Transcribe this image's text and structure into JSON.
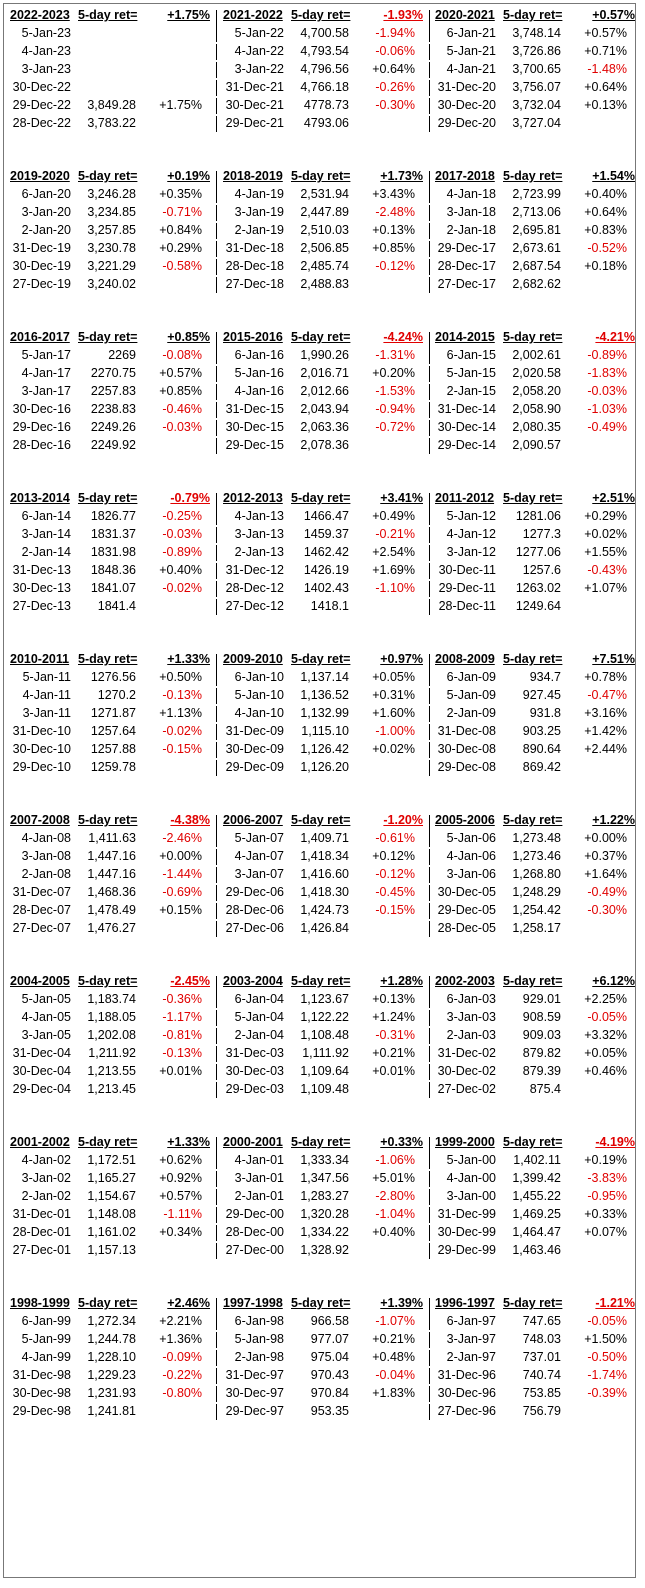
{
  "tables": [
    {
      "period": "2022-2023",
      "label": "5-day ret=",
      "ret": "+1.75%",
      "rows": [
        [
          "5-Jan-23",
          "",
          ""
        ],
        [
          "4-Jan-23",
          "",
          ""
        ],
        [
          "3-Jan-23",
          "",
          ""
        ],
        [
          "30-Dec-22",
          "",
          ""
        ],
        [
          "29-Dec-22",
          "3,849.28",
          "+1.75%"
        ],
        [
          "28-Dec-22",
          "3,783.22",
          ""
        ]
      ]
    },
    {
      "period": "2021-2022",
      "label": "5-day ret=",
      "ret": "-1.93%",
      "rows": [
        [
          "5-Jan-22",
          "4,700.58",
          "-1.94%"
        ],
        [
          "4-Jan-22",
          "4,793.54",
          "-0.06%"
        ],
        [
          "3-Jan-22",
          "4,796.56",
          "+0.64%"
        ],
        [
          "31-Dec-21",
          "4,766.18",
          "-0.26%"
        ],
        [
          "30-Dec-21",
          "4778.73",
          "-0.30%"
        ],
        [
          "29-Dec-21",
          "4793.06",
          ""
        ]
      ]
    },
    {
      "period": "2020-2021",
      "label": "5-day ret=",
      "ret": "+0.57%",
      "rows": [
        [
          "6-Jan-21",
          "3,748.14",
          "+0.57%"
        ],
        [
          "5-Jan-21",
          "3,726.86",
          "+0.71%"
        ],
        [
          "4-Jan-21",
          "3,700.65",
          "-1.48%"
        ],
        [
          "31-Dec-20",
          "3,756.07",
          "+0.64%"
        ],
        [
          "30-Dec-20",
          "3,732.04",
          "+0.13%"
        ],
        [
          "29-Dec-20",
          "3,727.04",
          ""
        ]
      ]
    },
    {
      "period": "2019-2020",
      "label": "5-day ret=",
      "ret": "+0.19%",
      "rows": [
        [
          "6-Jan-20",
          "3,246.28",
          "+0.35%"
        ],
        [
          "3-Jan-20",
          "3,234.85",
          "-0.71%"
        ],
        [
          "2-Jan-20",
          "3,257.85",
          "+0.84%"
        ],
        [
          "31-Dec-19",
          "3,230.78",
          "+0.29%"
        ],
        [
          "30-Dec-19",
          "3,221.29",
          "-0.58%"
        ],
        [
          "27-Dec-19",
          "3,240.02",
          ""
        ]
      ]
    },
    {
      "period": "2018-2019",
      "label": "5-day ret=",
      "ret": "+1.73%",
      "rows": [
        [
          "4-Jan-19",
          "2,531.94",
          "+3.43%"
        ],
        [
          "3-Jan-19",
          "2,447.89",
          "-2.48%"
        ],
        [
          "2-Jan-19",
          "2,510.03",
          "+0.13%"
        ],
        [
          "31-Dec-18",
          "2,506.85",
          "+0.85%"
        ],
        [
          "28-Dec-18",
          "2,485.74",
          "-0.12%"
        ],
        [
          "27-Dec-18",
          "2,488.83",
          ""
        ]
      ]
    },
    {
      "period": "2017-2018",
      "label": "5-day ret=",
      "ret": "+1.54%",
      "rows": [
        [
          "4-Jan-18",
          "2,723.99",
          "+0.40%"
        ],
        [
          "3-Jan-18",
          "2,713.06",
          "+0.64%"
        ],
        [
          "2-Jan-18",
          "2,695.81",
          "+0.83%"
        ],
        [
          "29-Dec-17",
          "2,673.61",
          "-0.52%"
        ],
        [
          "28-Dec-17",
          "2,687.54",
          "+0.18%"
        ],
        [
          "27-Dec-17",
          "2,682.62",
          ""
        ]
      ]
    },
    {
      "period": "2016-2017",
      "label": "5-day ret=",
      "ret": "+0.85%",
      "rows": [
        [
          "5-Jan-17",
          "2269",
          "-0.08%"
        ],
        [
          "4-Jan-17",
          "2270.75",
          "+0.57%"
        ],
        [
          "3-Jan-17",
          "2257.83",
          "+0.85%"
        ],
        [
          "30-Dec-16",
          "2238.83",
          "-0.46%"
        ],
        [
          "29-Dec-16",
          "2249.26",
          "-0.03%"
        ],
        [
          "28-Dec-16",
          "2249.92",
          ""
        ]
      ]
    },
    {
      "period": "2015-2016",
      "label": "5-day ret=",
      "ret": "-4.24%",
      "rows": [
        [
          "6-Jan-16",
          "1,990.26",
          "-1.31%"
        ],
        [
          "5-Jan-16",
          "2,016.71",
          "+0.20%"
        ],
        [
          "4-Jan-16",
          "2,012.66",
          "-1.53%"
        ],
        [
          "31-Dec-15",
          "2,043.94",
          "-0.94%"
        ],
        [
          "30-Dec-15",
          "2,063.36",
          "-0.72%"
        ],
        [
          "29-Dec-15",
          "2,078.36",
          ""
        ]
      ]
    },
    {
      "period": "2014-2015",
      "label": "5-day ret=",
      "ret": "-4.21%",
      "rows": [
        [
          "6-Jan-15",
          "2,002.61",
          "-0.89%"
        ],
        [
          "5-Jan-15",
          "2,020.58",
          "-1.83%"
        ],
        [
          "2-Jan-15",
          "2,058.20",
          "-0.03%"
        ],
        [
          "31-Dec-14",
          "2,058.90",
          "-1.03%"
        ],
        [
          "30-Dec-14",
          "2,080.35",
          "-0.49%"
        ],
        [
          "29-Dec-14",
          "2,090.57",
          ""
        ]
      ]
    },
    {
      "period": "2013-2014",
      "label": "5-day ret=",
      "ret": "-0.79%",
      "rows": [
        [
          "6-Jan-14",
          "1826.77",
          "-0.25%"
        ],
        [
          "3-Jan-14",
          "1831.37",
          "-0.03%"
        ],
        [
          "2-Jan-14",
          "1831.98",
          "-0.89%"
        ],
        [
          "31-Dec-13",
          "1848.36",
          "+0.40%"
        ],
        [
          "30-Dec-13",
          "1841.07",
          "-0.02%"
        ],
        [
          "27-Dec-13",
          "1841.4",
          ""
        ]
      ]
    },
    {
      "period": "2012-2013",
      "label": "5-day ret=",
      "ret": "+3.41%",
      "rows": [
        [
          "4-Jan-13",
          "1466.47",
          "+0.49%"
        ],
        [
          "3-Jan-13",
          "1459.37",
          "-0.21%"
        ],
        [
          "2-Jan-13",
          "1462.42",
          "+2.54%"
        ],
        [
          "31-Dec-12",
          "1426.19",
          "+1.69%"
        ],
        [
          "28-Dec-12",
          "1402.43",
          "-1.10%"
        ],
        [
          "27-Dec-12",
          "1418.1",
          ""
        ]
      ]
    },
    {
      "period": "2011-2012",
      "label": "5-day ret=",
      "ret": "+2.51%",
      "rows": [
        [
          "5-Jan-12",
          "1281.06",
          "+0.29%"
        ],
        [
          "4-Jan-12",
          "1277.3",
          "+0.02%"
        ],
        [
          "3-Jan-12",
          "1277.06",
          "+1.55%"
        ],
        [
          "30-Dec-11",
          "1257.6",
          "-0.43%"
        ],
        [
          "29-Dec-11",
          "1263.02",
          "+1.07%"
        ],
        [
          "28-Dec-11",
          "1249.64",
          ""
        ]
      ]
    },
    {
      "period": "2010-2011",
      "label": "5-day ret=",
      "ret": "+1.33%",
      "rows": [
        [
          "5-Jan-11",
          "1276.56",
          "+0.50%"
        ],
        [
          "4-Jan-11",
          "1270.2",
          "-0.13%"
        ],
        [
          "3-Jan-11",
          "1271.87",
          "+1.13%"
        ],
        [
          "31-Dec-10",
          "1257.64",
          "-0.02%"
        ],
        [
          "30-Dec-10",
          "1257.88",
          "-0.15%"
        ],
        [
          "29-Dec-10",
          "1259.78",
          ""
        ]
      ]
    },
    {
      "period": "2009-2010",
      "label": "5-day ret=",
      "ret": "+0.97%",
      "rows": [
        [
          "6-Jan-10",
          "1,137.14",
          "+0.05%"
        ],
        [
          "5-Jan-10",
          "1,136.52",
          "+0.31%"
        ],
        [
          "4-Jan-10",
          "1,132.99",
          "+1.60%"
        ],
        [
          "31-Dec-09",
          "1,115.10",
          "-1.00%"
        ],
        [
          "30-Dec-09",
          "1,126.42",
          "+0.02%"
        ],
        [
          "29-Dec-09",
          "1,126.20",
          ""
        ]
      ]
    },
    {
      "period": "2008-2009",
      "label": "5-day ret=",
      "ret": "+7.51%",
      "rows": [
        [
          "6-Jan-09",
          "934.7",
          "+0.78%"
        ],
        [
          "5-Jan-09",
          "927.45",
          "-0.47%"
        ],
        [
          "2-Jan-09",
          "931.8",
          "+3.16%"
        ],
        [
          "31-Dec-08",
          "903.25",
          "+1.42%"
        ],
        [
          "30-Dec-08",
          "890.64",
          "+2.44%"
        ],
        [
          "29-Dec-08",
          "869.42",
          ""
        ]
      ]
    },
    {
      "period": "2007-2008",
      "label": "5-day ret=",
      "ret": "-4.38%",
      "rows": [
        [
          "4-Jan-08",
          "1,411.63",
          "-2.46%"
        ],
        [
          "3-Jan-08",
          "1,447.16",
          "+0.00%"
        ],
        [
          "2-Jan-08",
          "1,447.16",
          "-1.44%"
        ],
        [
          "31-Dec-07",
          "1,468.36",
          "-0.69%"
        ],
        [
          "28-Dec-07",
          "1,478.49",
          "+0.15%"
        ],
        [
          "27-Dec-07",
          "1,476.27",
          ""
        ]
      ]
    },
    {
      "period": "2006-2007",
      "label": "5-day ret=",
      "ret": "-1.20%",
      "rows": [
        [
          "5-Jan-07",
          "1,409.71",
          "-0.61%"
        ],
        [
          "4-Jan-07",
          "1,418.34",
          "+0.12%"
        ],
        [
          "3-Jan-07",
          "1,416.60",
          "-0.12%"
        ],
        [
          "29-Dec-06",
          "1,418.30",
          "-0.45%"
        ],
        [
          "28-Dec-06",
          "1,424.73",
          "-0.15%"
        ],
        [
          "27-Dec-06",
          "1,426.84",
          ""
        ]
      ]
    },
    {
      "period": "2005-2006",
      "label": "5-day ret=",
      "ret": "+1.22%",
      "rows": [
        [
          "5-Jan-06",
          "1,273.48",
          "+0.00%"
        ],
        [
          "4-Jan-06",
          "1,273.46",
          "+0.37%"
        ],
        [
          "3-Jan-06",
          "1,268.80",
          "+1.64%"
        ],
        [
          "30-Dec-05",
          "1,248.29",
          "-0.49%"
        ],
        [
          "29-Dec-05",
          "1,254.42",
          "-0.30%"
        ],
        [
          "28-Dec-05",
          "1,258.17",
          ""
        ]
      ]
    },
    {
      "period": "2004-2005",
      "label": "5-day ret=",
      "ret": "-2.45%",
      "rows": [
        [
          "5-Jan-05",
          "1,183.74",
          "-0.36%"
        ],
        [
          "4-Jan-05",
          "1,188.05",
          "-1.17%"
        ],
        [
          "3-Jan-05",
          "1,202.08",
          "-0.81%"
        ],
        [
          "31-Dec-04",
          "1,211.92",
          "-0.13%"
        ],
        [
          "30-Dec-04",
          "1,213.55",
          "+0.01%"
        ],
        [
          "29-Dec-04",
          "1,213.45",
          ""
        ]
      ]
    },
    {
      "period": "2003-2004",
      "label": "5-day ret=",
      "ret": "+1.28%",
      "rows": [
        [
          "6-Jan-04",
          "1,123.67",
          "+0.13%"
        ],
        [
          "5-Jan-04",
          "1,122.22",
          "+1.24%"
        ],
        [
          "2-Jan-04",
          "1,108.48",
          "-0.31%"
        ],
        [
          "31-Dec-03",
          "1,111.92",
          "+0.21%"
        ],
        [
          "30-Dec-03",
          "1,109.64",
          "+0.01%"
        ],
        [
          "29-Dec-03",
          "1,109.48",
          ""
        ]
      ]
    },
    {
      "period": "2002-2003",
      "label": "5-day ret=",
      "ret": "+6.12%",
      "rows": [
        [
          "6-Jan-03",
          "929.01",
          "+2.25%"
        ],
        [
          "3-Jan-03",
          "908.59",
          "-0.05%"
        ],
        [
          "2-Jan-03",
          "909.03",
          "+3.32%"
        ],
        [
          "31-Dec-02",
          "879.82",
          "+0.05%"
        ],
        [
          "30-Dec-02",
          "879.39",
          "+0.46%"
        ],
        [
          "27-Dec-02",
          "875.4",
          ""
        ]
      ]
    },
    {
      "period": "2001-2002",
      "label": "5-day ret=",
      "ret": "+1.33%",
      "rows": [
        [
          "4-Jan-02",
          "1,172.51",
          "+0.62%"
        ],
        [
          "3-Jan-02",
          "1,165.27",
          "+0.92%"
        ],
        [
          "2-Jan-02",
          "1,154.67",
          "+0.57%"
        ],
        [
          "31-Dec-01",
          "1,148.08",
          "-1.11%"
        ],
        [
          "28-Dec-01",
          "1,161.02",
          "+0.34%"
        ],
        [
          "27-Dec-01",
          "1,157.13",
          ""
        ]
      ]
    },
    {
      "period": "2000-2001",
      "label": "5-day ret=",
      "ret": "+0.33%",
      "rows": [
        [
          "4-Jan-01",
          "1,333.34",
          "-1.06%"
        ],
        [
          "3-Jan-01",
          "1,347.56",
          "+5.01%"
        ],
        [
          "2-Jan-01",
          "1,283.27",
          "-2.80%"
        ],
        [
          "29-Dec-00",
          "1,320.28",
          "-1.04%"
        ],
        [
          "28-Dec-00",
          "1,334.22",
          "+0.40%"
        ],
        [
          "27-Dec-00",
          "1,328.92",
          ""
        ]
      ]
    },
    {
      "period": "1999-2000",
      "label": "5-day ret=",
      "ret": "-4.19%",
      "rows": [
        [
          "5-Jan-00",
          "1,402.11",
          "+0.19%"
        ],
        [
          "4-Jan-00",
          "1,399.42",
          "-3.83%"
        ],
        [
          "3-Jan-00",
          "1,455.22",
          "-0.95%"
        ],
        [
          "31-Dec-99",
          "1,469.25",
          "+0.33%"
        ],
        [
          "30-Dec-99",
          "1,464.47",
          "+0.07%"
        ],
        [
          "29-Dec-99",
          "1,463.46",
          ""
        ]
      ]
    },
    {
      "period": "1998-1999",
      "label": "5-day ret=",
      "ret": "+2.46%",
      "rows": [
        [
          "6-Jan-99",
          "1,272.34",
          "+2.21%"
        ],
        [
          "5-Jan-99",
          "1,244.78",
          "+1.36%"
        ],
        [
          "4-Jan-99",
          "1,228.10",
          "-0.09%"
        ],
        [
          "31-Dec-98",
          "1,229.23",
          "-0.22%"
        ],
        [
          "30-Dec-98",
          "1,231.93",
          "-0.80%"
        ],
        [
          "29-Dec-98",
          "1,241.81",
          ""
        ]
      ]
    },
    {
      "period": "1997-1998",
      "label": "5-day ret=",
      "ret": "+1.39%",
      "rows": [
        [
          "6-Jan-98",
          "966.58",
          "-1.07%"
        ],
        [
          "5-Jan-98",
          "977.07",
          "+0.21%"
        ],
        [
          "2-Jan-98",
          "975.04",
          "+0.48%"
        ],
        [
          "31-Dec-97",
          "970.43",
          "-0.04%"
        ],
        [
          "30-Dec-97",
          "970.84",
          "+1.83%"
        ],
        [
          "29-Dec-97",
          "953.35",
          ""
        ]
      ]
    },
    {
      "period": "1996-1997",
      "label": "5-day ret=",
      "ret": "-1.21%",
      "rows": [
        [
          "6-Jan-97",
          "747.65",
          "-0.05%"
        ],
        [
          "3-Jan-97",
          "748.03",
          "+1.50%"
        ],
        [
          "2-Jan-97",
          "737.01",
          "-0.50%"
        ],
        [
          "31-Dec-96",
          "740.74",
          "-1.74%"
        ],
        [
          "30-Dec-96",
          "753.85",
          "-0.39%"
        ],
        [
          "27-Dec-96",
          "756.79",
          ""
        ]
      ]
    }
  ]
}
